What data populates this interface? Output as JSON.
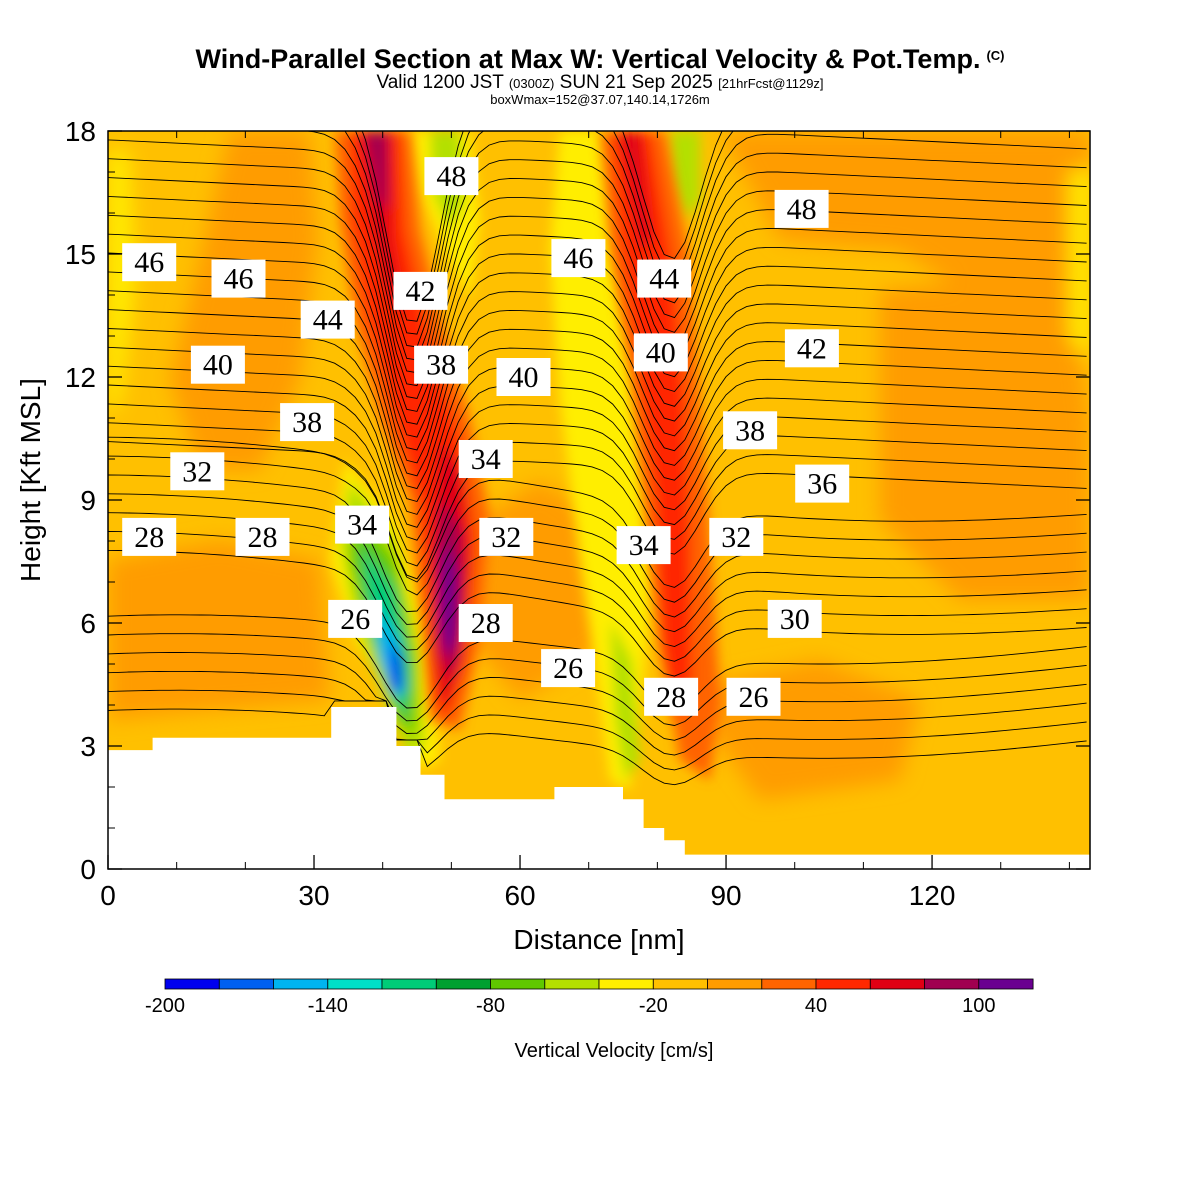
{
  "header": {
    "title": "Wind-Parallel Section at Max W: Vertical Velocity & Pot.Temp.",
    "title_mark": "(C)",
    "valid_prefix": "Valid 1200 JST",
    "valid_utc": "(0300Z)",
    "valid_date": "SUN 21 Sep 2025",
    "forecast": "[21hrFcst@1129z]",
    "box_info": "boxWmax=152@37.07,140.14,1726m"
  },
  "colors": {
    "background_field": "#ffc000",
    "terrain": "#ffffff",
    "contour_line": "#000000"
  },
  "chart_data": {
    "type": "heatmap",
    "xlabel": "Distance [nm]",
    "ylabel": "Height [Kft MSL]",
    "xlim": [
      0,
      143
    ],
    "ylim": [
      0,
      18
    ],
    "x_ticks": [
      0,
      30,
      60,
      90,
      120
    ],
    "y_ticks": [
      0,
      3,
      6,
      9,
      12,
      15,
      18
    ],
    "colorbar": {
      "label": "Vertical Velocity [cm/s]",
      "tick_labels": [
        "-200",
        "-140",
        "-80",
        "-20",
        "40",
        "100"
      ],
      "tick_values": [
        -200,
        -140,
        -80,
        -20,
        40,
        100
      ],
      "bins": [
        {
          "from": -200,
          "to": -180,
          "color": "#0000ee"
        },
        {
          "from": -180,
          "to": -160,
          "color": "#0060f0"
        },
        {
          "from": -160,
          "to": -140,
          "color": "#00b4f0"
        },
        {
          "from": -140,
          "to": -120,
          "color": "#00e0c8"
        },
        {
          "from": -120,
          "to": -100,
          "color": "#00cc78"
        },
        {
          "from": -100,
          "to": -80,
          "color": "#00a030"
        },
        {
          "from": -80,
          "to": -60,
          "color": "#60c800"
        },
        {
          "from": -60,
          "to": -40,
          "color": "#b4e000"
        },
        {
          "from": -40,
          "to": -20,
          "color": "#ffee00"
        },
        {
          "from": -20,
          "to": 0,
          "color": "#ffc000"
        },
        {
          "from": 0,
          "to": 20,
          "color": "#ff9c00"
        },
        {
          "from": 20,
          "to": 40,
          "color": "#ff6400"
        },
        {
          "from": 40,
          "to": 60,
          "color": "#ff2800"
        },
        {
          "from": 60,
          "to": 80,
          "color": "#e00014"
        },
        {
          "from": 80,
          "to": 100,
          "color": "#a00050"
        },
        {
          "from": 100,
          "to": 120,
          "color": "#6a0090"
        }
      ]
    },
    "terrain_profile": [
      {
        "x": 0,
        "z": 2.9
      },
      {
        "x": 6.5,
        "z": 2.9
      },
      {
        "x": 6.5,
        "z": 3.2
      },
      {
        "x": 32.5,
        "z": 3.2
      },
      {
        "x": 32.5,
        "z": 3.95
      },
      {
        "x": 42,
        "z": 3.95
      },
      {
        "x": 42,
        "z": 3.0
      },
      {
        "x": 45.5,
        "z": 3.0
      },
      {
        "x": 45.5,
        "z": 2.3
      },
      {
        "x": 49,
        "z": 2.3
      },
      {
        "x": 49,
        "z": 1.7
      },
      {
        "x": 65,
        "z": 1.7
      },
      {
        "x": 65,
        "z": 2.0
      },
      {
        "x": 75,
        "z": 2.0
      },
      {
        "x": 75,
        "z": 1.7
      },
      {
        "x": 78,
        "z": 1.7
      },
      {
        "x": 78,
        "z": 1.0
      },
      {
        "x": 81,
        "z": 1.0
      },
      {
        "x": 81,
        "z": 0.7
      },
      {
        "x": 84,
        "z": 0.7
      },
      {
        "x": 84,
        "z": 0.35
      },
      {
        "x": 143,
        "z": 0.35
      }
    ],
    "vertical_velocity_features": [
      {
        "name": "downdraft-core",
        "x": [
          35,
          46
        ],
        "z": [
          3.8,
          8.5
        ],
        "min": -180
      },
      {
        "name": "updraft-core-1",
        "x": [
          36,
          54
        ],
        "z": [
          4.0,
          18
        ],
        "max": 110
      },
      {
        "name": "updraft-core-2",
        "x": [
          74,
          88
        ],
        "z": [
          2.5,
          18
        ],
        "max": 60
      }
    ],
    "potential_temperature_labels": [
      {
        "text": "48",
        "x": 50,
        "z": 16.9
      },
      {
        "text": "48",
        "x": 101,
        "z": 16.1
      },
      {
        "text": "46",
        "x": 6,
        "z": 14.8
      },
      {
        "text": "46",
        "x": 19,
        "z": 14.4
      },
      {
        "text": "46",
        "x": 68.5,
        "z": 14.9
      },
      {
        "text": "44",
        "x": 32,
        "z": 13.4
      },
      {
        "text": "44",
        "x": 81,
        "z": 14.4
      },
      {
        "text": "42",
        "x": 45.5,
        "z": 14.1
      },
      {
        "text": "42",
        "x": 102.5,
        "z": 12.7
      },
      {
        "text": "40",
        "x": 16,
        "z": 12.3
      },
      {
        "text": "40",
        "x": 60.5,
        "z": 12.0
      },
      {
        "text": "40",
        "x": 80.5,
        "z": 12.6
      },
      {
        "text": "38",
        "x": 48.5,
        "z": 12.3
      },
      {
        "text": "38",
        "x": 29,
        "z": 10.9
      },
      {
        "text": "38",
        "x": 93.5,
        "z": 10.7
      },
      {
        "text": "36",
        "x": 104,
        "z": 9.4
      },
      {
        "text": "34",
        "x": 55,
        "z": 10.0
      },
      {
        "text": "34",
        "x": 37,
        "z": 8.4
      },
      {
        "text": "34",
        "x": 78,
        "z": 7.9
      },
      {
        "text": "32",
        "x": 13,
        "z": 9.7
      },
      {
        "text": "32",
        "x": 58,
        "z": 8.1
      },
      {
        "text": "32",
        "x": 91.5,
        "z": 8.1
      },
      {
        "text": "30",
        "x": 100,
        "z": 6.1
      },
      {
        "text": "28",
        "x": 6,
        "z": 8.1
      },
      {
        "text": "28",
        "x": 22.5,
        "z": 8.1
      },
      {
        "text": "28",
        "x": 55,
        "z": 6.0
      },
      {
        "text": "28",
        "x": 82,
        "z": 4.2
      },
      {
        "text": "26",
        "x": 36,
        "z": 6.1
      },
      {
        "text": "26",
        "x": 67,
        "z": 4.9
      },
      {
        "text": "26",
        "x": 94,
        "z": 4.2
      }
    ]
  }
}
